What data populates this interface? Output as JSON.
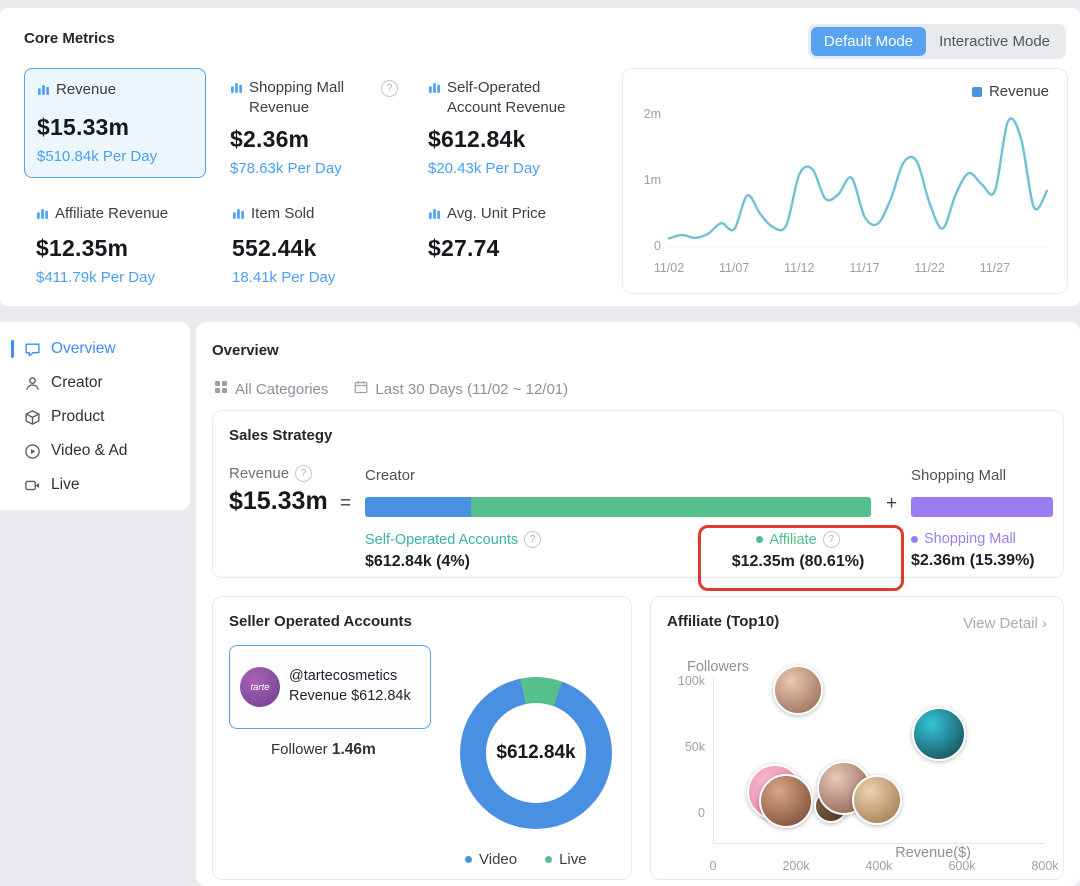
{
  "core_metrics": {
    "title": "Core Metrics",
    "modes": {
      "default": "Default Mode",
      "interactive": "Interactive Mode"
    },
    "cards": [
      {
        "label": "Revenue",
        "value": "$15.33m",
        "sub": "$510.84k Per Day"
      },
      {
        "label": "Shopping Mall Revenue",
        "value": "$2.36m",
        "sub": "$78.63k Per Day"
      },
      {
        "label": "Self-Operated Account Revenue",
        "value": "$612.84k",
        "sub": "$20.43k Per Day"
      },
      {
        "label": "Affiliate Revenue",
        "value": "$12.35m",
        "sub": "$411.79k Per Day"
      },
      {
        "label": "Item Sold",
        "value": "552.44k",
        "sub": "18.41k Per Day"
      },
      {
        "label": "Avg. Unit Price",
        "value": "$27.74",
        "sub": ""
      }
    ]
  },
  "sidebar": {
    "items": [
      {
        "label": "Overview"
      },
      {
        "label": "Creator"
      },
      {
        "label": "Product"
      },
      {
        "label": "Video & Ad"
      },
      {
        "label": "Live"
      }
    ],
    "active_index": 0
  },
  "overview": {
    "title": "Overview",
    "filters": {
      "category": "All Categories",
      "date_range": "Last 30 Days (11/02 ~ 12/01)"
    },
    "sales_strategy": {
      "title": "Sales Strategy",
      "revenue_label": "Revenue",
      "revenue_value": "$15.33m",
      "equals": "=",
      "plus": "+",
      "creator_label": "Creator",
      "shopping_mall_label": "Shopping Mall"
    },
    "seller_accounts": {
      "title": "Seller Operated Accounts",
      "account": {
        "avatar_text": "tarte",
        "handle": "@tartecosmetics",
        "revenue_line": "Revenue $612.84k"
      },
      "follower_label": "Follower",
      "follower_value": "1.46m"
    },
    "affiliate_top10": {
      "title": "Affiliate (Top10)",
      "view_detail": "View Detail"
    }
  },
  "colors": {
    "accent_blue": "#4a9ff5",
    "bar_blue": "#4a90e2",
    "bar_green": "#55c08c",
    "bar_purple": "#997df0",
    "teal_text": "#38b2a3",
    "line_teal": "#6fc2d3",
    "highlight_red": "#e03a2a",
    "active_mode_bg": "#57a3f1"
  },
  "chart_data": [
    {
      "id": "revenue_trend",
      "type": "line",
      "legend": [
        "Revenue"
      ],
      "unit": "m",
      "ylim": [
        0,
        2
      ],
      "y_ticks": [
        {
          "label": "2m",
          "value": 2
        },
        {
          "label": "1m",
          "value": 1
        },
        {
          "label": "0",
          "value": 0
        }
      ],
      "x_ticks": [
        {
          "label": "11/02",
          "day": 0
        },
        {
          "label": "11/07",
          "day": 5
        },
        {
          "label": "11/12",
          "day": 10
        },
        {
          "label": "11/17",
          "day": 15
        },
        {
          "label": "11/22",
          "day": 20
        },
        {
          "label": "11/27",
          "day": 25
        }
      ],
      "values": [
        0.13,
        0.18,
        0.14,
        0.2,
        0.36,
        0.27,
        0.78,
        0.5,
        0.3,
        0.33,
        1.1,
        1.18,
        0.73,
        0.8,
        1.05,
        0.46,
        0.35,
        0.72,
        1.28,
        1.3,
        0.66,
        0.28,
        0.8,
        1.12,
        0.95,
        0.85,
        1.9,
        1.65,
        0.6,
        0.85
      ],
      "line_color": "#6fc2d3",
      "grid": false,
      "legend_position": "top-right"
    },
    {
      "id": "sales_strategy_composition",
      "type": "bar",
      "segments": [
        {
          "name": "Self-Operated Accounts",
          "display": "$612.84k (4%)",
          "value_pct": 4,
          "bar_width_pct": 21,
          "color": "#4a90e2"
        },
        {
          "name": "Affiliate",
          "display": "$12.35m (80.61%)",
          "value_pct": 80.61,
          "bar_width_pct": 79,
          "color": "#55c08c"
        },
        {
          "name": "Shopping Mall",
          "display": "$2.36m (15.39%)",
          "value_pct": 15.39,
          "color": "#997df0"
        }
      ]
    },
    {
      "id": "seller_accounts_donut",
      "type": "pie",
      "center_label": "$612.84k",
      "segments": [
        {
          "name": "Video",
          "pct": 91,
          "color": "#4a90e2"
        },
        {
          "name": "Live",
          "pct": 9,
          "color": "#55c08c"
        }
      ]
    },
    {
      "id": "affiliate_scatter",
      "type": "scatter",
      "xlabel": "Revenue($)",
      "ylabel": "Followers",
      "xlim": [
        0,
        800000
      ],
      "ylim": [
        0,
        100000
      ],
      "x_ticks": [
        {
          "label": "0",
          "value": 0
        },
        {
          "label": "200k",
          "value": 200
        },
        {
          "label": "400k",
          "value": 400
        },
        {
          "label": "600k",
          "value": 600
        },
        {
          "label": "800k",
          "value": 800
        }
      ],
      "y_ticks": [
        {
          "label": "100k",
          "value": 100
        },
        {
          "label": "50k",
          "value": 50
        },
        {
          "label": "0",
          "value": 0
        }
      ],
      "points": [
        {
          "revenue_k": 150,
          "followers_k": 16,
          "size": 56,
          "color": "#f6b8cf",
          "color2": "#e87fa9"
        },
        {
          "revenue_k": 175,
          "followers_k": 9,
          "size": 54,
          "color": "#d9a687",
          "color2": "#6f432e"
        },
        {
          "revenue_k": 285,
          "followers_k": 5,
          "size": 34,
          "color": "#8a6a52",
          "color2": "#463322"
        },
        {
          "revenue_k": 315,
          "followers_k": 19,
          "size": 54,
          "color": "#e8c9b8",
          "color2": "#835647"
        },
        {
          "revenue_k": 395,
          "followers_k": 10,
          "size": 50,
          "color": "#ecd2ae",
          "color2": "#9c7148"
        },
        {
          "revenue_k": 205,
          "followers_k": 93,
          "size": 50,
          "color": "#e9c8b2",
          "color2": "#91644d"
        },
        {
          "revenue_k": 545,
          "followers_k": 60,
          "size": 54,
          "color": "#35c4d8",
          "color2": "#123f47"
        }
      ]
    }
  ]
}
